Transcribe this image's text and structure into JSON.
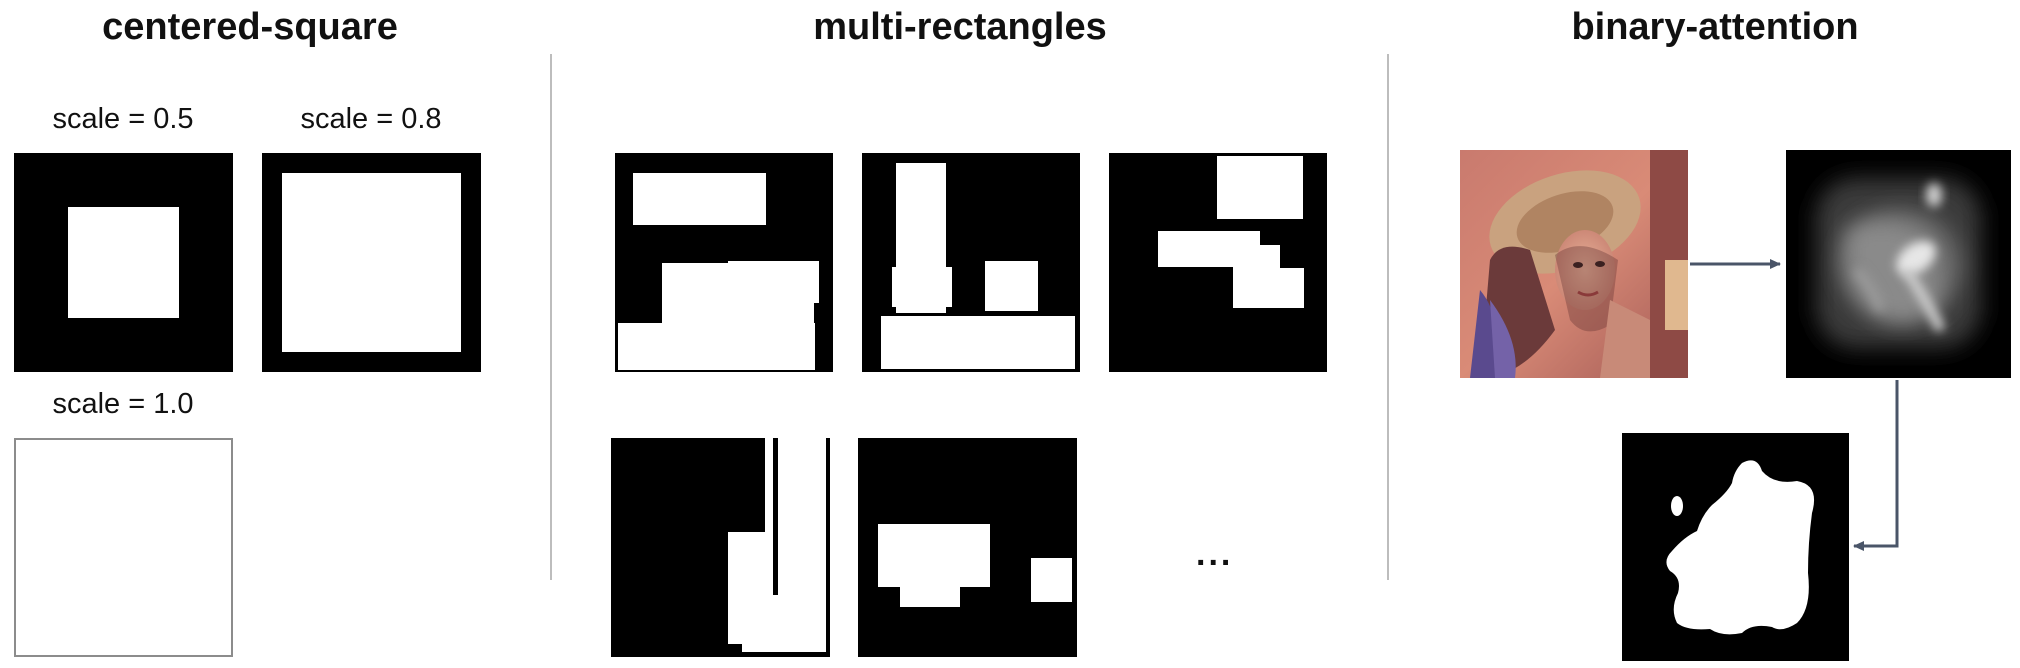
{
  "sections": {
    "centered_square": {
      "title": "centered-square",
      "scales": [
        "scale = 0.5",
        "scale = 0.8",
        "scale = 1.0"
      ]
    },
    "multi_rectangles": {
      "title": "multi-rectangles",
      "ellipsis": "..."
    },
    "binary_attention": {
      "title": "binary-attention"
    }
  },
  "colors": {
    "mask_black": "#000000",
    "mask_white": "#ffffff",
    "arrow": "#4a5568",
    "divider": "#bdbdbd"
  }
}
